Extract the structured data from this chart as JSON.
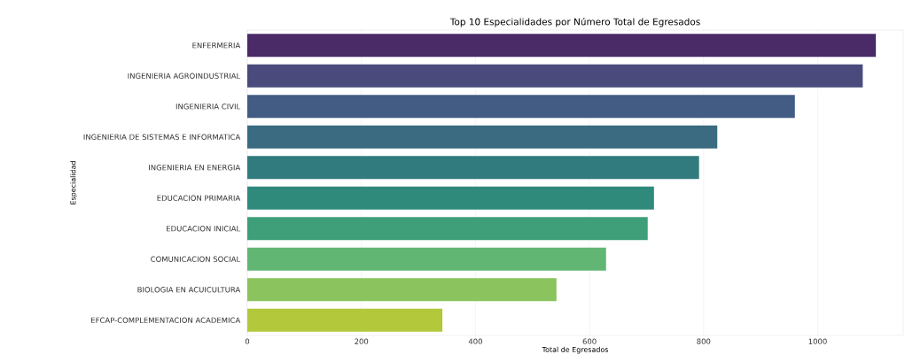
{
  "chart_data": {
    "type": "bar",
    "orientation": "horizontal",
    "title": "Top 10 Especialidades por Número Total de Egresados",
    "xlabel": "Total de Egresados",
    "ylabel": "Especialidad",
    "categories": [
      "ENFERMERIA",
      "INGENIERIA AGROINDUSTRIAL",
      "INGENIERIA CIVIL",
      "INGENIERIA DE SISTEMAS E INFORMATICA",
      "INGENIERIA EN ENERGIA",
      "EDUCACION PRIMARIA",
      "EDUCACION INICIAL",
      "COMUNICACION SOCIAL",
      "BIOLOGIA EN ACUICULTURA",
      "EFCAP-COMPLEMENTACION ACADEMICA"
    ],
    "values": [
      1102,
      1079,
      960,
      824,
      792,
      713,
      702,
      629,
      542,
      342
    ],
    "colors": [
      "#4b2a68",
      "#4a4a7c",
      "#425c83",
      "#3a6b80",
      "#317b7e",
      "#2f8a7c",
      "#3e9f79",
      "#62b673",
      "#8bc45e",
      "#b3c83b"
    ],
    "xlim": [
      0,
      1150
    ],
    "xticks": [
      0,
      200,
      400,
      600,
      800,
      1000
    ],
    "grid": "x"
  }
}
